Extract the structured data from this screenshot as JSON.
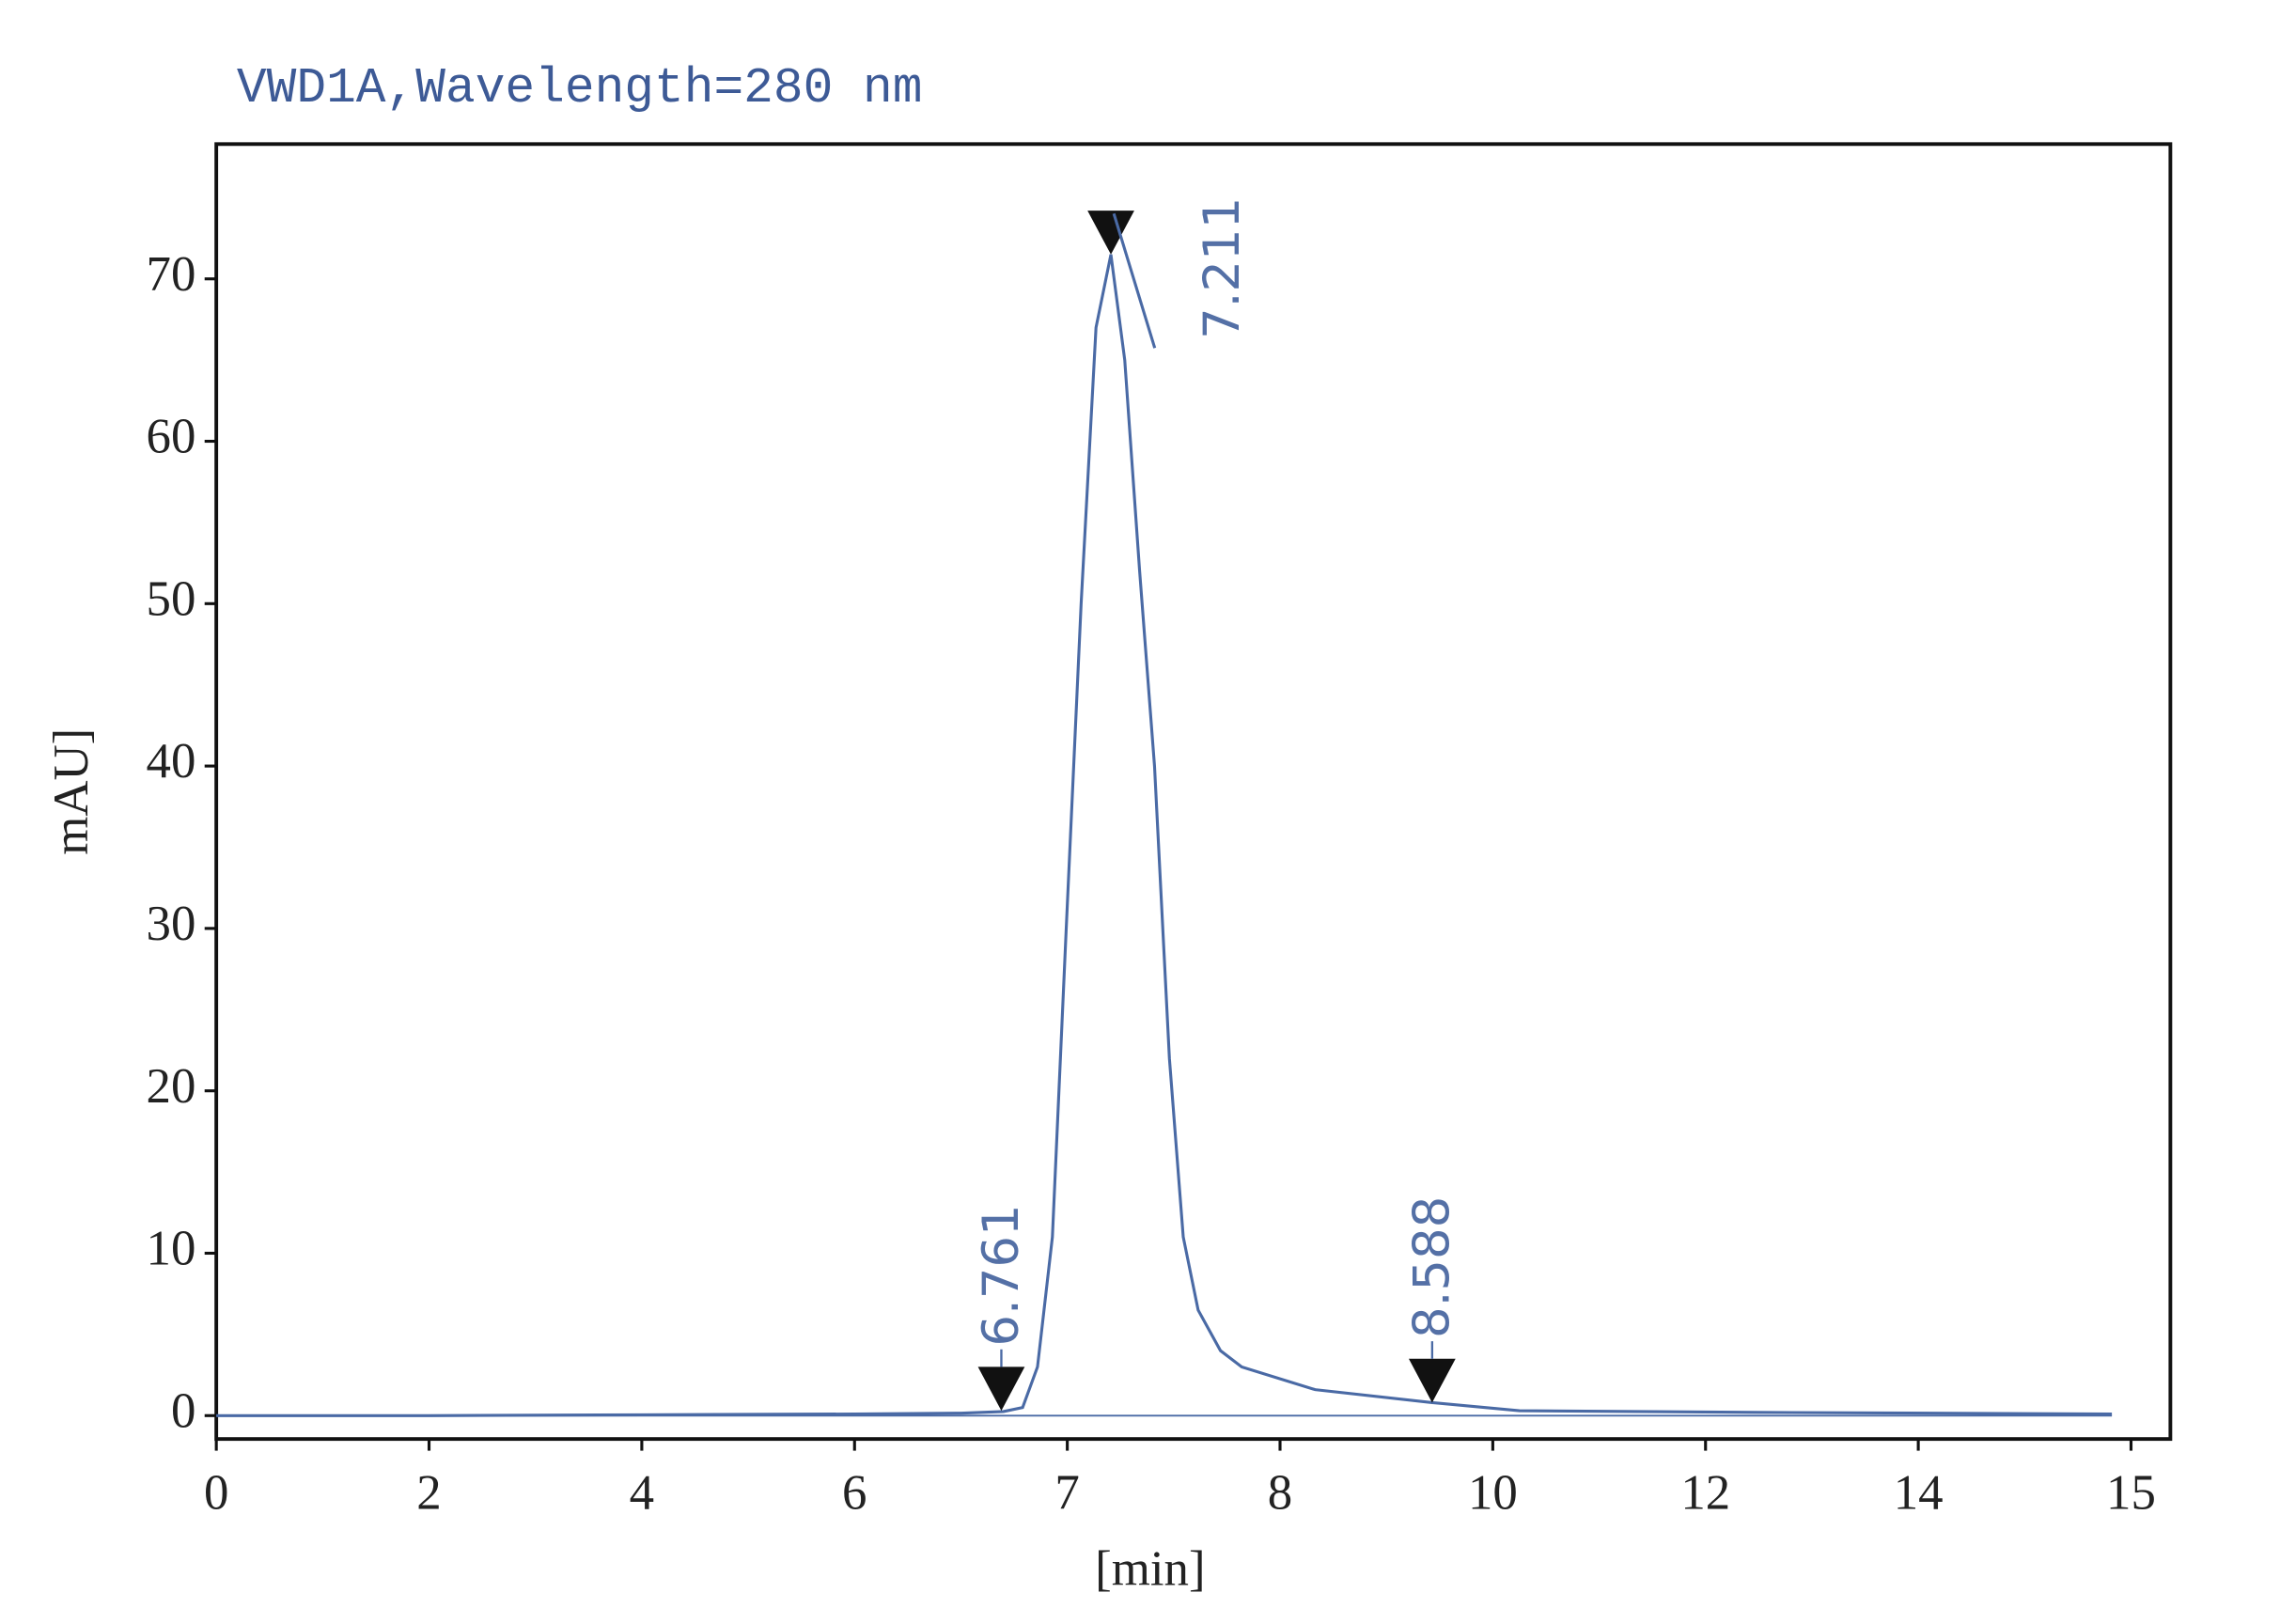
{
  "chart_data": {
    "type": "line",
    "title": "VWD1A,Wavelength=280 nm",
    "xlabel": "[min]",
    "ylabel": "mAU]",
    "xlim": [
      0,
      18.37
    ],
    "ylim": [
      -1.44,
      78.3
    ],
    "xticks": [
      0,
      2,
      4,
      6,
      {
        "value": 8,
        "label": "7"
      },
      {
        "value": 10,
        "label": "8"
      },
      {
        "value": 12,
        "label": "10"
      },
      {
        "value": 14,
        "label": "12"
      },
      {
        "value": 16,
        "label": "14"
      },
      {
        "value": 18,
        "label": "15"
      }
    ],
    "yticks": [
      0,
      10,
      20,
      30,
      40,
      50,
      60,
      70
    ],
    "series": [
      {
        "color": "#4a6aa5",
        "x": [
          0,
          2,
          4,
          6,
          7,
          7.4,
          7.58,
          7.72,
          7.86,
          7.99,
          8.13,
          8.27,
          8.41,
          8.54,
          8.68,
          8.82,
          8.96,
          9.09,
          9.23,
          9.44,
          9.64,
          10.33,
          11.43,
          12.25,
          14.45,
          17.82
        ],
        "values": [
          0,
          0,
          0.05,
          0.1,
          0.15,
          0.25,
          0.5,
          3,
          11,
          30,
          50,
          67,
          71.5,
          65,
          52,
          40,
          22,
          11,
          6.5,
          4,
          3,
          1.6,
          0.8,
          0.3,
          0.2,
          0.1
        ]
      }
    ],
    "annotations": [
      {
        "label": "6.761",
        "x": 7.38,
        "y": 0.3
      },
      {
        "label": "7.211",
        "x": 8.41,
        "y": 71.5
      },
      {
        "label": "8.588",
        "x": 11.43,
        "y": 0.8
      }
    ]
  }
}
